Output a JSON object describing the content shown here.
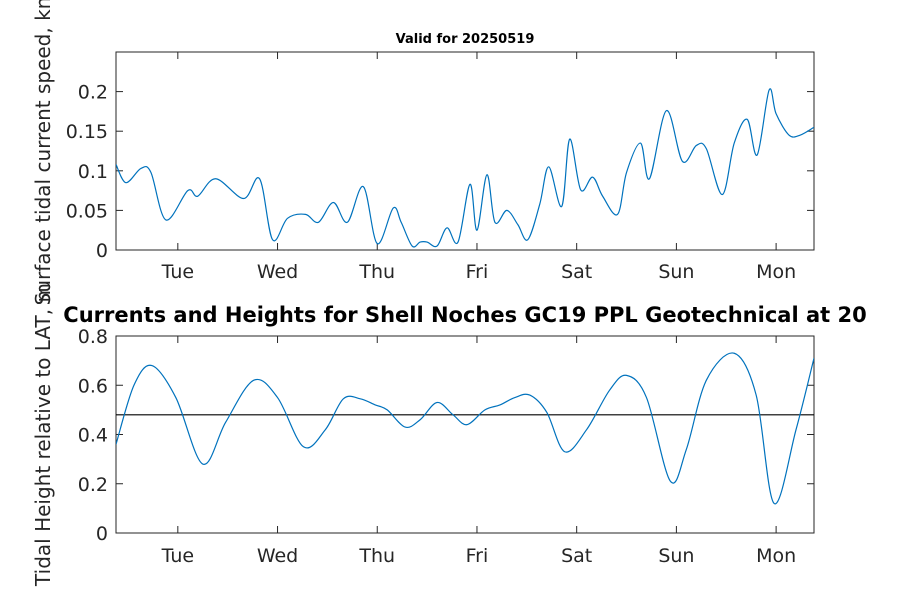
{
  "chart_data": [
    {
      "type": "line",
      "title": "Valid for 20250519",
      "ylabel": "Surface tidal current speed, kn",
      "xlim": [
        0,
        7
      ],
      "ylim": [
        0,
        0.25
      ],
      "categories": [
        "Tue",
        "Wed",
        "Thu",
        "Fri",
        "Sat",
        "Sun",
        "Mon"
      ],
      "category_x": [
        0.62,
        1.62,
        2.62,
        3.62,
        4.62,
        5.62,
        6.62
      ],
      "yticks": [
        0,
        0.05,
        0.1,
        0.15,
        0.2
      ],
      "ytick_labels": [
        "0",
        "0.05",
        "0.1",
        "0.15",
        "0.2"
      ],
      "series": [
        {
          "color": "#0072bd",
          "x": [
            0,
            0.1,
            0.25,
            0.35,
            0.5,
            0.72,
            0.82,
            1.0,
            1.28,
            1.44,
            1.57,
            1.72,
            1.9,
            2.03,
            2.18,
            2.32,
            2.48,
            2.62,
            2.78,
            2.86,
            2.97,
            3.05,
            3.12,
            3.22,
            3.32,
            3.43,
            3.55,
            3.62,
            3.72,
            3.8,
            3.92,
            4.03,
            4.13,
            4.25,
            4.34,
            4.47,
            4.55,
            4.66,
            4.78,
            4.88,
            5.03,
            5.12,
            5.26,
            5.35,
            5.52,
            5.68,
            5.82,
            5.92,
            6.08,
            6.2,
            6.33,
            6.43,
            6.55,
            6.62,
            6.75,
            6.86,
            7.0
          ],
          "y": [
            0.108,
            0.085,
            0.103,
            0.098,
            0.038,
            0.075,
            0.068,
            0.09,
            0.065,
            0.09,
            0.013,
            0.04,
            0.045,
            0.035,
            0.06,
            0.035,
            0.08,
            0.008,
            0.053,
            0.035,
            0.005,
            0.01,
            0.01,
            0.005,
            0.028,
            0.01,
            0.083,
            0.025,
            0.095,
            0.035,
            0.05,
            0.032,
            0.013,
            0.058,
            0.105,
            0.055,
            0.14,
            0.076,
            0.092,
            0.068,
            0.045,
            0.098,
            0.135,
            0.09,
            0.176,
            0.112,
            0.132,
            0.128,
            0.07,
            0.135,
            0.165,
            0.12,
            0.202,
            0.172,
            0.145,
            0.145,
            0.155
          ]
        }
      ]
    },
    {
      "type": "line",
      "title": "Currents and Heights for Shell Noches   GC19 PPL  Geotechnical at 20",
      "ylabel": "Tidal Height relative to LAT, m",
      "xlim": [
        0,
        7
      ],
      "ylim": [
        0,
        0.8
      ],
      "categories": [
        "Tue",
        "Wed",
        "Thu",
        "Fri",
        "Sat",
        "Sun",
        "Mon"
      ],
      "category_x": [
        0.62,
        1.62,
        2.62,
        3.62,
        4.62,
        5.62,
        6.62
      ],
      "yticks": [
        0,
        0.2,
        0.4,
        0.6,
        0.8
      ],
      "ytick_labels": [
        "0",
        "0.2",
        "0.4",
        "0.6",
        "0.8"
      ],
      "reference_line": 0.48,
      "series": [
        {
          "color": "#0072bd",
          "x": [
            0,
            0.18,
            0.36,
            0.6,
            0.87,
            1.1,
            1.38,
            1.62,
            1.88,
            2.1,
            2.28,
            2.45,
            2.6,
            2.72,
            2.9,
            3.05,
            3.22,
            3.38,
            3.52,
            3.7,
            3.85,
            4.0,
            4.15,
            4.32,
            4.5,
            4.72,
            4.95,
            5.12,
            5.32,
            5.56,
            5.72,
            5.92,
            6.2,
            6.42,
            6.6,
            6.82,
            7.0
          ],
          "y": [
            0.36,
            0.6,
            0.68,
            0.55,
            0.28,
            0.45,
            0.62,
            0.55,
            0.35,
            0.42,
            0.545,
            0.545,
            0.52,
            0.5,
            0.43,
            0.46,
            0.53,
            0.48,
            0.44,
            0.5,
            0.52,
            0.55,
            0.56,
            0.49,
            0.33,
            0.42,
            0.58,
            0.64,
            0.55,
            0.21,
            0.34,
            0.62,
            0.73,
            0.56,
            0.12,
            0.42,
            0.71
          ]
        }
      ]
    }
  ]
}
